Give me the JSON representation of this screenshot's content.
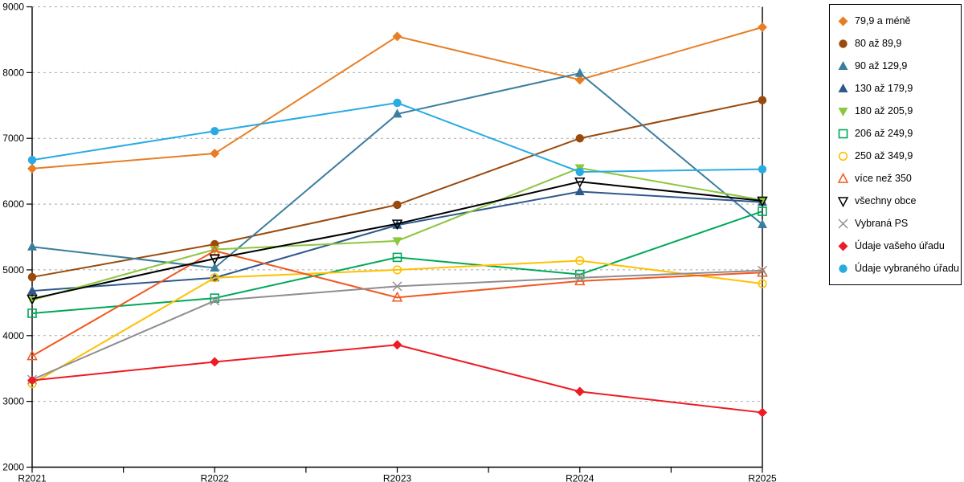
{
  "chart_data": {
    "type": "line",
    "title": "",
    "xlabel": "",
    "ylabel": "",
    "x_categories": [
      "R2021",
      "R2022",
      "R2023",
      "R2024",
      "R2025"
    ],
    "ylim": [
      2000,
      9000
    ],
    "y_ticks": [
      2000,
      3000,
      4000,
      5000,
      6000,
      7000,
      8000,
      9000
    ],
    "grid": "horizontal dashed gray, ticks every 1000, minor x-ticks between years",
    "legend_position": "right",
    "series": [
      {
        "name": "79,9 a méně",
        "marker": "diamond-filled",
        "color": "#E87E23",
        "values": [
          6540,
          6770,
          8550,
          7890,
          8690
        ]
      },
      {
        "name": "80 až 89,9",
        "marker": "circle-filled",
        "color": "#9A4A0D",
        "values": [
          4890,
          5390,
          5990,
          7000,
          7580
        ]
      },
      {
        "name": "90 až 129,9",
        "marker": "triangle-up-filled",
        "color": "#3A7F9E",
        "values": [
          5350,
          5030,
          7370,
          7990,
          5690
        ]
      },
      {
        "name": "130 až 179,9",
        "marker": "triangle-up-filled",
        "color": "#2E598C",
        "values": [
          4680,
          4880,
          5680,
          6190,
          6030
        ]
      },
      {
        "name": "180 až 205,9",
        "marker": "triangle-down-filled",
        "color": "#8DC63F",
        "values": [
          4540,
          5310,
          5440,
          6550,
          6060
        ]
      },
      {
        "name": "206 až 249,9",
        "marker": "square-outline",
        "color": "#00A859",
        "values": [
          4340,
          4570,
          5190,
          4930,
          5890
        ]
      },
      {
        "name": "250 až 349,9",
        "marker": "circle-outline",
        "color": "#FFC000",
        "values": [
          3270,
          4880,
          5000,
          5140,
          4790
        ]
      },
      {
        "name": "více než 350",
        "marker": "triangle-up-outline",
        "color": "#F1581F",
        "values": [
          3690,
          5290,
          4580,
          4830,
          4960
        ]
      },
      {
        "name": "všechny obce",
        "marker": "triangle-down-outline",
        "color": "#000000",
        "values": [
          4560,
          5170,
          5700,
          6340,
          6050
        ]
      },
      {
        "name": "Vybraná PS",
        "marker": "x-cross",
        "color": "#8E8E8E",
        "values": [
          3330,
          4530,
          4750,
          4880,
          4990
        ]
      },
      {
        "name": "Údaje vašeho úřadu",
        "marker": "diamond-filled",
        "color": "#EC1C24",
        "values": [
          3320,
          3600,
          3860,
          3150,
          2830
        ]
      },
      {
        "name": "Údaje vybraného úřadu",
        "marker": "circle-filled",
        "color": "#29ABE2",
        "values": [
          6670,
          7110,
          7540,
          6490,
          6530
        ]
      }
    ],
    "axis_color": "#000000",
    "gridline_color": "#A9A9A9"
  }
}
